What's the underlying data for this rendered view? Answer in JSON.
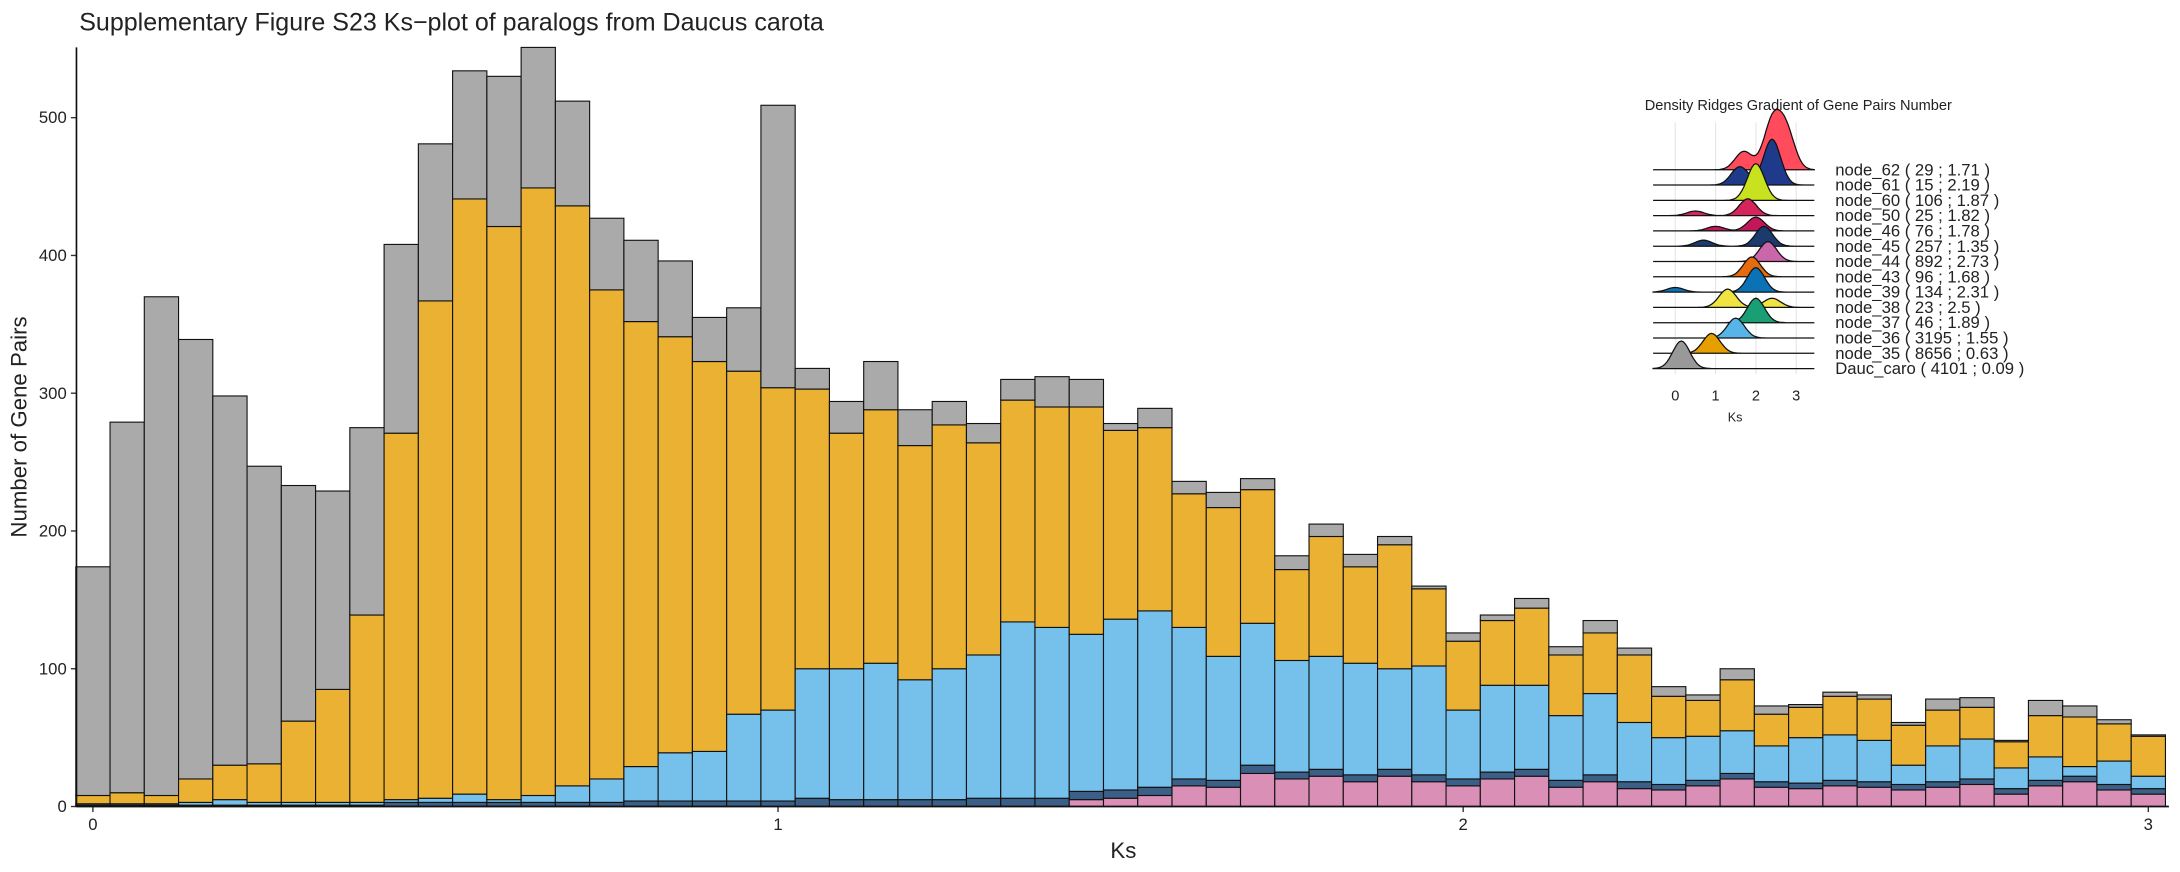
{
  "chart_data": [
    {
      "type": "histogram",
      "title": "Supplementary Figure S23 Ks−plot of paralogs from Daucus carota",
      "xlabel": "Ks",
      "ylabel": "Number of Gene Pairs",
      "bins": [
        -0.025,
        0.025,
        0.075,
        0.125,
        0.175,
        0.225,
        0.275,
        0.325,
        0.375,
        0.425,
        0.475,
        0.525,
        0.575,
        0.625,
        0.675,
        0.725,
        0.775,
        0.825,
        0.875,
        0.925,
        0.975,
        1.025,
        1.075,
        1.125,
        1.175,
        1.225,
        1.275,
        1.325,
        1.375,
        1.425,
        1.475,
        1.525,
        1.575,
        1.625,
        1.675,
        1.725,
        1.775,
        1.825,
        1.875,
        1.925,
        1.975,
        2.025,
        2.075,
        2.125,
        2.175,
        2.225,
        2.275,
        2.325,
        2.375,
        2.425,
        2.475,
        2.525,
        2.575,
        2.625,
        2.675,
        2.725,
        2.775,
        2.825,
        2.875,
        2.925,
        2.975,
        3.025
      ],
      "series": [
        {
          "name": "node_44",
          "color": "#d98fb6",
          "values": [
            0,
            0,
            0,
            0,
            0,
            0,
            0,
            0,
            0,
            0,
            0,
            0,
            0,
            0,
            0,
            0,
            0,
            0,
            0,
            0,
            0,
            0,
            0,
            0,
            0,
            0,
            0,
            0,
            0,
            5,
            6,
            8,
            15,
            14,
            24,
            20,
            22,
            18,
            22,
            18,
            15,
            20,
            22,
            14,
            18,
            13,
            12,
            15,
            20,
            14,
            13,
            15,
            14,
            12,
            14,
            16,
            9,
            15,
            18,
            12,
            9
          ]
        },
        {
          "name": "node_45",
          "color": "#3b5f86",
          "values": [
            1,
            1,
            1,
            1,
            1,
            1,
            1,
            1,
            1,
            3,
            3,
            3,
            3,
            3,
            3,
            3,
            4,
            4,
            4,
            4,
            4,
            6,
            5,
            5,
            5,
            5,
            6,
            6,
            6,
            6,
            6,
            6,
            5,
            5,
            6,
            5,
            5,
            5,
            5,
            5,
            5,
            5,
            5,
            5,
            5,
            5,
            4,
            4,
            4,
            4,
            4,
            4,
            4,
            4,
            4,
            4,
            4,
            4,
            4,
            4,
            4
          ]
        },
        {
          "name": "node_36",
          "color": "#76c1ec",
          "values": [
            1,
            1,
            1,
            2,
            4,
            2,
            2,
            2,
            2,
            2,
            3,
            6,
            2,
            5,
            12,
            17,
            25,
            35,
            36,
            63,
            66,
            94,
            95,
            99,
            87,
            95,
            104,
            128,
            124,
            114,
            124,
            128,
            110,
            90,
            103,
            81,
            82,
            81,
            73,
            79,
            50,
            63,
            61,
            47,
            59,
            43,
            34,
            32,
            31,
            26,
            33,
            33,
            30,
            14,
            26,
            29,
            15,
            17,
            7,
            17,
            9
          ]
        },
        {
          "name": "node_35",
          "color": "#ebb132",
          "values": [
            6,
            8,
            6,
            17,
            25,
            28,
            59,
            82,
            136,
            266,
            361,
            432,
            416,
            441,
            421,
            355,
            323,
            302,
            283,
            249,
            234,
            203,
            171,
            184,
            170,
            177,
            154,
            161,
            160,
            165,
            137,
            133,
            97,
            108,
            97,
            66,
            87,
            70,
            90,
            56,
            50,
            47,
            56,
            44,
            44,
            49,
            30,
            26,
            37,
            23,
            22,
            28,
            30,
            29,
            26,
            23,
            19,
            30,
            36,
            27,
            29
          ]
        },
        {
          "name": "Dauc_caro",
          "color": "#aaaaaa",
          "values": [
            166,
            269,
            362,
            319,
            268,
            216,
            171,
            144,
            136,
            137,
            114,
            93,
            109,
            102,
            76,
            52,
            59,
            55,
            32,
            46,
            205,
            15,
            23,
            35,
            26,
            17,
            14,
            15,
            22,
            20,
            5,
            14,
            9,
            11,
            8,
            10,
            9,
            9,
            6,
            2,
            6,
            4,
            7,
            6,
            9,
            5,
            7,
            4,
            8,
            6,
            2,
            3,
            3,
            2,
            8,
            7,
            1,
            11,
            8,
            3,
            1
          ]
        }
      ],
      "xlim": [
        -0.024,
        3.03
      ],
      "ylim": [
        0,
        551
      ],
      "xticks": [
        0,
        1,
        2,
        3
      ],
      "yticks": [
        0,
        100,
        200,
        300,
        400,
        500
      ]
    },
    {
      "type": "ridgeline",
      "title": "Density Ridges Gradient of Gene Pairs Number",
      "xlabel": "Ks",
      "xlim": [
        -0.55,
        3.45
      ],
      "xticks": [
        0,
        1,
        2,
        3
      ],
      "series": [
        {
          "name": "node_62 ( 29 ; 1.71 )",
          "color": "#ff4b5c",
          "peaks": [
            1.7,
            2.4,
            2.75
          ],
          "heights": [
            1.2,
            3,
            2.5
          ]
        },
        {
          "name": "node_61 ( 15 ; 2.19 )",
          "color": "#1f3a8a",
          "peaks": [
            1.6,
            2.4
          ],
          "heights": [
            1.2,
            3
          ]
        },
        {
          "name": "node_60 ( 106 ; 1.87 )",
          "color": "#c9e21f",
          "peaks": [
            2.0
          ],
          "heights": [
            2.4
          ]
        },
        {
          "name": "node_50 ( 25 ; 1.82 )",
          "color": "#d6245d",
          "peaks": [
            0.5,
            1.8
          ],
          "heights": [
            0.3,
            1.1
          ]
        },
        {
          "name": "node_46 ( 76 ; 1.78 )",
          "color": "#c2185b",
          "peaks": [
            1.0,
            2.0
          ],
          "heights": [
            0.3,
            0.9
          ]
        },
        {
          "name": "node_45 ( 257 ; 1.35 )",
          "color": "#1b3b6f",
          "peaks": [
            0.7,
            2.2
          ],
          "heights": [
            0.4,
            1.3
          ]
        },
        {
          "name": "node_44 ( 892 ; 2.73 )",
          "color": "#cc66aa",
          "peaks": [
            2.3
          ],
          "heights": [
            1.3
          ]
        },
        {
          "name": "node_43 ( 96 ; 1.68 )",
          "color": "#e66a0e",
          "peaks": [
            1.9
          ],
          "heights": [
            1.3
          ]
        },
        {
          "name": "node_39 ( 134 ; 2.31 )",
          "color": "#0b72b5",
          "peaks": [
            0.0,
            2.0
          ],
          "heights": [
            0.3,
            1.6
          ]
        },
        {
          "name": "node_38 ( 23 ; 2.5 )",
          "color": "#f0e442",
          "peaks": [
            1.3,
            2.4
          ],
          "heights": [
            1.2,
            0.6
          ]
        },
        {
          "name": "node_37 ( 46 ; 1.89 )",
          "color": "#1a9e73",
          "peaks": [
            2.0
          ],
          "heights": [
            1.6
          ]
        },
        {
          "name": "node_36 ( 3195 ; 1.55 )",
          "color": "#56b4e9",
          "peaks": [
            1.5
          ],
          "heights": [
            1.3
          ]
        },
        {
          "name": "node_35 ( 8656 ; 0.63 )",
          "color": "#e69f00",
          "peaks": [
            0.9
          ],
          "heights": [
            1.3
          ]
        },
        {
          "name": "Dauc_caro ( 4101 ; 0.09 )",
          "color": "#999999",
          "peaks": [
            0.15
          ],
          "heights": [
            1.8
          ]
        }
      ]
    }
  ]
}
